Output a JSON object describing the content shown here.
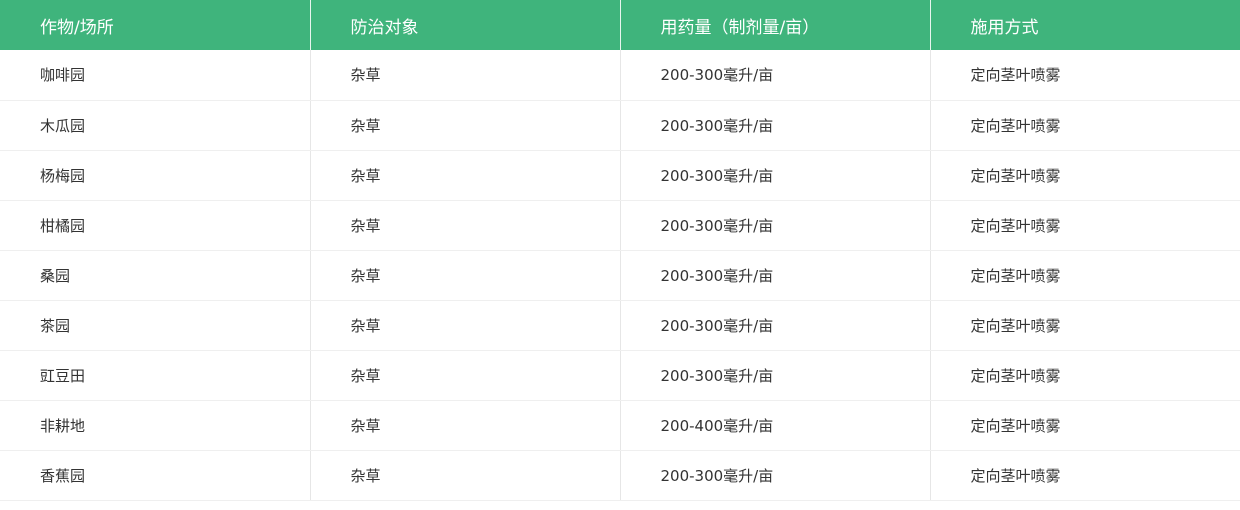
{
  "table": {
    "headers": [
      "作物/场所",
      "防治对象",
      "用药量（制剂量/亩）",
      "施用方式"
    ],
    "rows": [
      [
        "咖啡园",
        "杂草",
        "200-300毫升/亩",
        "定向茎叶喷雾"
      ],
      [
        "木瓜园",
        "杂草",
        "200-300毫升/亩",
        "定向茎叶喷雾"
      ],
      [
        "杨梅园",
        "杂草",
        "200-300毫升/亩",
        "定向茎叶喷雾"
      ],
      [
        "柑橘园",
        "杂草",
        "200-300毫升/亩",
        "定向茎叶喷雾"
      ],
      [
        "桑园",
        "杂草",
        "200-300毫升/亩",
        "定向茎叶喷雾"
      ],
      [
        "茶园",
        "杂草",
        "200-300毫升/亩",
        "定向茎叶喷雾"
      ],
      [
        "豇豆田",
        "杂草",
        "200-300毫升/亩",
        "定向茎叶喷雾"
      ],
      [
        "非耕地",
        "杂草",
        "200-400毫升/亩",
        "定向茎叶喷雾"
      ],
      [
        "香蕉园",
        "杂草",
        "200-300毫升/亩",
        "定向茎叶喷雾"
      ]
    ]
  },
  "colors": {
    "header_bg": "#3fb47c",
    "header_text": "#ffffff",
    "body_text": "#333333"
  }
}
